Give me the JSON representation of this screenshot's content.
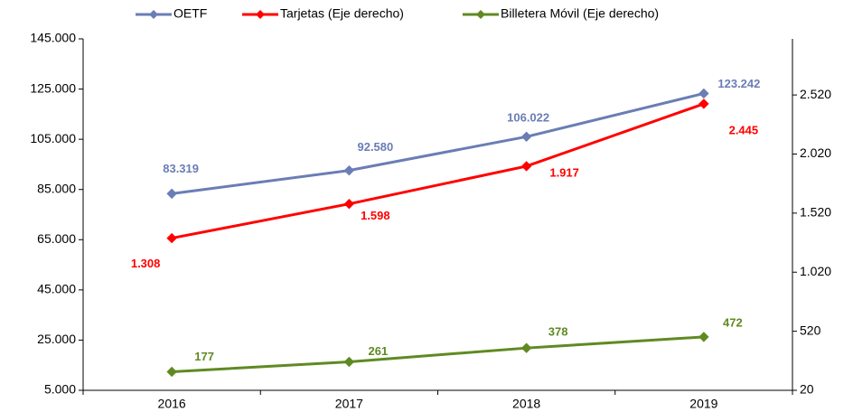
{
  "chart_data": {
    "type": "line",
    "categories": [
      "2016",
      "2017",
      "2018",
      "2019"
    ],
    "series": [
      {
        "name": "OETF",
        "color": "#6a7db5",
        "values": [
          83319,
          92580,
          106022,
          123242
        ],
        "value_labels": [
          "83.319",
          "92.580",
          "106.022",
          "123.242"
        ]
      },
      {
        "name": "Tarjetas  (Eje derecho)",
        "color": "#ff0000",
        "axis": "y2",
        "values": [
          1308,
          1598,
          1917,
          2445
        ],
        "value_labels": [
          "1.308",
          "1.598",
          "1.917",
          "2.445"
        ]
      },
      {
        "name": "Billetera Móvil  (Eje derecho)",
        "color": "#5f8a22",
        "axis": "y2",
        "values": [
          177,
          261,
          378,
          472
        ]
      }
    ],
    "ylim": [
      5000,
      145000
    ],
    "yticks": [
      {
        "value": 5000,
        "label": "5.000"
      },
      {
        "value": 25000,
        "label": "25.000"
      },
      {
        "value": 45000,
        "label": "45.000"
      },
      {
        "value": 65000,
        "label": "65.000"
      },
      {
        "value": 85000,
        "label": "85.000"
      },
      {
        "value": 105000,
        "label": "105.000"
      },
      {
        "value": 125000,
        "label": "125.000"
      },
      {
        "value": 145000,
        "label": "145.000"
      }
    ],
    "y2lim": [
      20,
      2995
    ],
    "y2ticks": [
      20,
      520,
      {
        "value": 1020,
        "label": "1.020"
      },
      {
        "value": 1520,
        "label": "1.520"
      },
      {
        "value": 2020,
        "label": "2.020"
      },
      {
        "value": 2520,
        "label": "2.520"
      }
    ],
    "grid": false,
    "legend": "top"
  }
}
